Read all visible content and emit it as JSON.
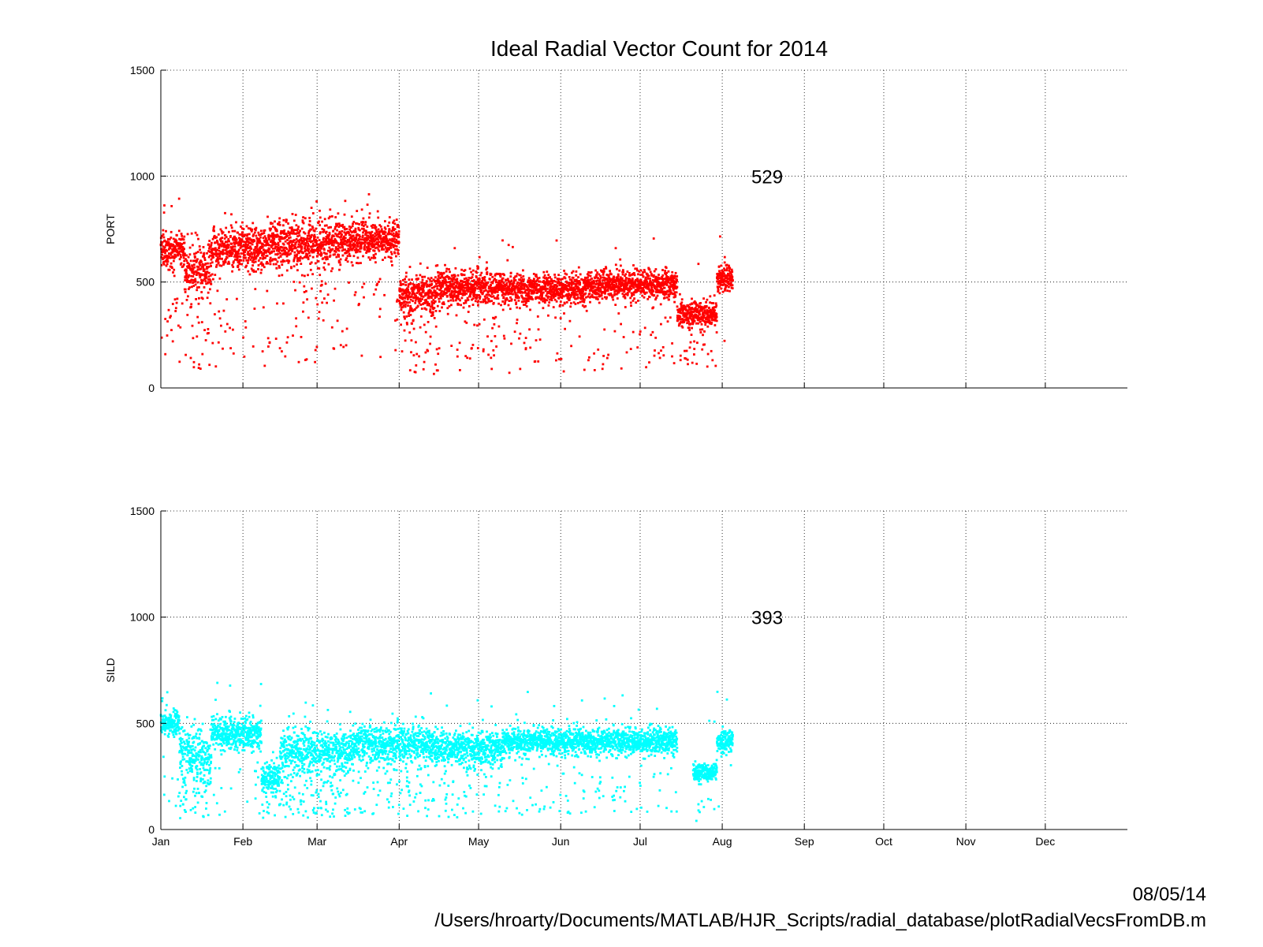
{
  "chart_data": {
    "type": "scatter",
    "title": "Ideal Radial Vector Count for 2014",
    "x_tick_labels": [
      "Jan",
      "Feb",
      "Mar",
      "Apr",
      "May",
      "Jun",
      "Jul",
      "Aug",
      "Sep",
      "Oct",
      "Nov",
      "Dec"
    ],
    "x_tick_dates": [
      "2014-01-01",
      "2014-02-01",
      "2014-03-01",
      "2014-04-01",
      "2014-05-01",
      "2014-06-01",
      "2014-07-01",
      "2014-08-01",
      "2014-09-01",
      "2014-10-01",
      "2014-11-01",
      "2014-12-01"
    ],
    "xlim": [
      "2014-01-01",
      "2015-01-01"
    ],
    "grid": true,
    "panels": [
      {
        "ylabel": "PORT",
        "ylim": [
          0,
          1500
        ],
        "yticks": [
          0,
          500,
          1000,
          1500
        ],
        "color": "#ff0000",
        "annotation": "529",
        "annotation_position": {
          "date": "2014-08-12",
          "value": 1000
        },
        "series": [
          {
            "start": "2014-01-01",
            "end": "2014-01-10",
            "mean": 650,
            "spread": 55,
            "dip_prob": 0.05
          },
          {
            "start": "2014-01-10",
            "end": "2014-01-20",
            "mean": 560,
            "spread": 90,
            "dip_prob": 0.12
          },
          {
            "start": "2014-01-20",
            "end": "2014-02-10",
            "mean": 660,
            "spread": 70,
            "dip_prob": 0.08
          },
          {
            "start": "2014-02-10",
            "end": "2014-03-10",
            "mean": 680,
            "spread": 80,
            "dip_prob": 0.08
          },
          {
            "start": "2014-03-10",
            "end": "2014-04-01",
            "mean": 700,
            "spread": 65,
            "dip_prob": 0.05
          },
          {
            "start": "2014-04-01",
            "end": "2014-04-15",
            "mean": 440,
            "spread": 70,
            "dip_prob": 0.1
          },
          {
            "start": "2014-04-15",
            "end": "2014-05-10",
            "mean": 470,
            "spread": 60,
            "dip_prob": 0.07
          },
          {
            "start": "2014-05-10",
            "end": "2014-06-10",
            "mean": 465,
            "spread": 50,
            "dip_prob": 0.04
          },
          {
            "start": "2014-06-10",
            "end": "2014-07-15",
            "mean": 485,
            "spread": 50,
            "dip_prob": 0.05
          },
          {
            "start": "2014-07-15",
            "end": "2014-07-30",
            "mean": 350,
            "spread": 45,
            "dip_prob": 0.08
          },
          {
            "start": "2014-07-30",
            "end": "2014-08-05",
            "mean": 510,
            "spread": 45,
            "dip_prob": 0.02
          }
        ]
      },
      {
        "ylabel": "SILD",
        "ylim": [
          0,
          1500
        ],
        "yticks": [
          0,
          500,
          1000,
          1500
        ],
        "color": "#00ffff",
        "annotation": "393",
        "annotation_position": {
          "date": "2014-08-12",
          "value": 1000
        },
        "series": [
          {
            "start": "2014-01-01",
            "end": "2014-01-08",
            "mean": 500,
            "spread": 40,
            "dip_prob": 0.05
          },
          {
            "start": "2014-01-08",
            "end": "2014-01-20",
            "mean": 350,
            "spread": 90,
            "dip_prob": 0.15
          },
          {
            "start": "2014-01-20",
            "end": "2014-02-08",
            "mean": 450,
            "spread": 55,
            "dip_prob": 0.06
          },
          {
            "start": "2014-02-08",
            "end": "2014-02-15",
            "mean": 240,
            "spread": 50,
            "dip_prob": 0.1
          },
          {
            "start": "2014-02-15",
            "end": "2014-03-15",
            "mean": 370,
            "spread": 75,
            "dip_prob": 0.15
          },
          {
            "start": "2014-03-15",
            "end": "2014-04-15",
            "mean": 400,
            "spread": 65,
            "dip_prob": 0.1
          },
          {
            "start": "2014-04-15",
            "end": "2014-05-10",
            "mean": 380,
            "spread": 60,
            "dip_prob": 0.08
          },
          {
            "start": "2014-05-10",
            "end": "2014-07-15",
            "mean": 415,
            "spread": 45,
            "dip_prob": 0.05
          },
          {
            "start": "2014-07-21",
            "end": "2014-07-30",
            "mean": 270,
            "spread": 30,
            "dip_prob": 0.04
          },
          {
            "start": "2014-07-30",
            "end": "2014-08-05",
            "mean": 410,
            "spread": 40,
            "dip_prob": 0.04
          }
        ]
      }
    ]
  },
  "footer": {
    "date": "08/05/14",
    "path": "/Users/hroarty/Documents/MATLAB/HJR_Scripts/radial_database/plotRadialVecsFromDB.m"
  }
}
